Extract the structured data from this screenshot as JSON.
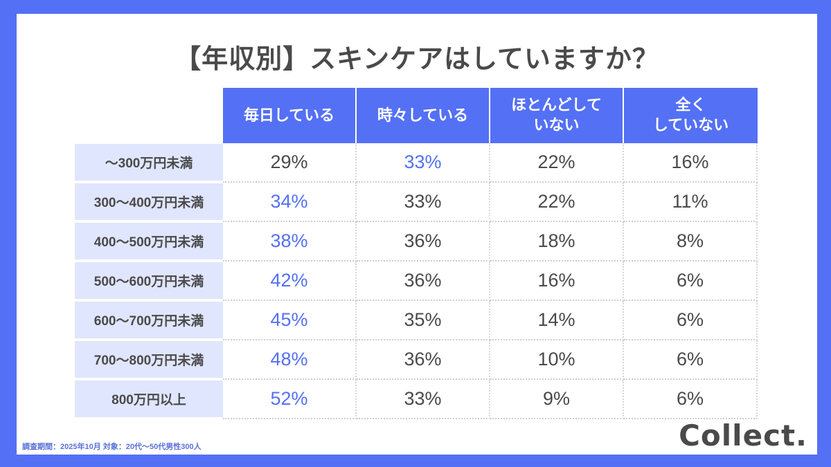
{
  "title": "【年収別】スキンケアはしていますか？",
  "colors": {
    "brand": "#5470f5",
    "row_label_bg": "#e0e6fd",
    "text": "#4a4a4a",
    "highlight": "#5470f5"
  },
  "columns": [
    "毎日している",
    "時々している",
    "ほとんどして\nいない",
    "全く\nしていない"
  ],
  "rows": [
    {
      "label": "〜300万円未満",
      "values": [
        "29%",
        "33%",
        "22%",
        "16%"
      ],
      "highlight": 1
    },
    {
      "label": "300〜400万円未満",
      "values": [
        "34%",
        "33%",
        "22%",
        "11%"
      ],
      "highlight": 0
    },
    {
      "label": "400〜500万円未満",
      "values": [
        "38%",
        "36%",
        "18%",
        "8%"
      ],
      "highlight": 0
    },
    {
      "label": "500〜600万円未満",
      "values": [
        "42%",
        "36%",
        "16%",
        "6%"
      ],
      "highlight": 0
    },
    {
      "label": "600〜700万円未満",
      "values": [
        "45%",
        "35%",
        "14%",
        "6%"
      ],
      "highlight": 0
    },
    {
      "label": "700〜800万円未満",
      "values": [
        "48%",
        "36%",
        "10%",
        "6%"
      ],
      "highlight": 0
    },
    {
      "label": "800万円以上",
      "values": [
        "52%",
        "33%",
        "9%",
        "6%"
      ],
      "highlight": 0
    }
  ],
  "footnote": "調査期間：2025年10月  対象：20代〜50代男性300人",
  "logo": "Collect.",
  "chart_data": {
    "type": "table",
    "title": "【年収別】スキンケアはしていますか？",
    "categories": [
      "〜300万円未満",
      "300〜400万円未満",
      "400〜500万円未満",
      "500〜600万円未満",
      "600〜700万円未満",
      "700〜800万円未満",
      "800万円以上"
    ],
    "series": [
      {
        "name": "毎日している",
        "values": [
          29,
          34,
          38,
          42,
          45,
          48,
          52
        ]
      },
      {
        "name": "時々している",
        "values": [
          33,
          33,
          36,
          36,
          35,
          36,
          33
        ]
      },
      {
        "name": "ほとんどしていない",
        "values": [
          22,
          22,
          18,
          16,
          14,
          10,
          9
        ]
      },
      {
        "name": "全くしていない",
        "values": [
          16,
          11,
          8,
          6,
          6,
          6,
          6
        ]
      }
    ],
    "unit": "%",
    "highlighted_max_per_row": [
      1,
      0,
      0,
      0,
      0,
      0,
      0
    ]
  }
}
